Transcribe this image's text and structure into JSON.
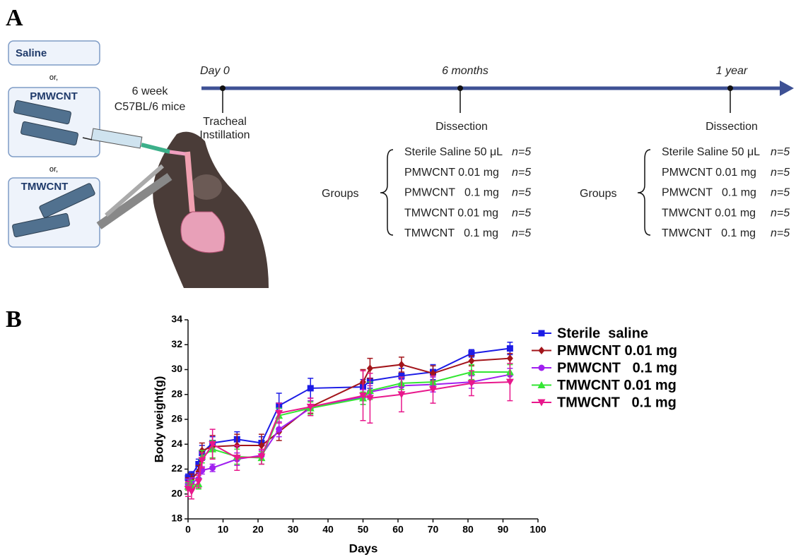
{
  "panel_a": {
    "label": "A",
    "materials": [
      "Saline",
      "PMWCNT",
      "TMWCNT"
    ],
    "separators": [
      "or,",
      "or,"
    ],
    "mice": [
      "6 week",
      "C57BL/6 mice"
    ],
    "timeline": [
      {
        "time": "Day 0",
        "event": [
          "Tracheal",
          "Instillation"
        ]
      },
      {
        "time": "6 months",
        "event": [
          "Dissection"
        ]
      },
      {
        "time": "1 year",
        "event": [
          "Dissection"
        ]
      }
    ],
    "groups": [
      {
        "label": "Groups",
        "items": [
          {
            "name": "Sterile Saline 50 μL",
            "n": "n=5"
          },
          {
            "name": "PMWCNT 0.01 mg",
            "n": "n=5"
          },
          {
            "name": "PMWCNT   0.1 mg",
            "n": "n=5"
          },
          {
            "name": "TMWCNT 0.01 mg",
            "n": "n=5"
          },
          {
            "name": "TMWCNT   0.1 mg",
            "n": "n=5"
          }
        ]
      },
      {
        "label": "Groups",
        "items": [
          {
            "name": "Sterile Saline 50 μL",
            "n": "n=5"
          },
          {
            "name": "PMWCNT 0.01 mg",
            "n": "n=5"
          },
          {
            "name": "PMWCNT   0.1 mg",
            "n": "n=5"
          },
          {
            "name": "TMWCNT 0.01 mg",
            "n": "n=5"
          },
          {
            "name": "TMWCNT   0.1 mg",
            "n": "n=5"
          }
        ]
      }
    ]
  },
  "chart_data": {
    "type": "line",
    "panel_label": "B",
    "x_label": "Days",
    "y_label": "Body weight(g)",
    "xlim": [
      0,
      100
    ],
    "xticks": [
      0,
      10,
      20,
      30,
      40,
      50,
      60,
      70,
      80,
      90,
      100
    ],
    "ylim": [
      18,
      34
    ],
    "yticks": [
      18,
      20,
      22,
      24,
      26,
      28,
      30,
      32,
      34
    ],
    "legend": "upper right",
    "x": [
      0,
      1,
      3,
      4,
      7,
      14,
      21,
      26,
      35,
      50,
      52,
      61,
      70,
      81,
      92
    ],
    "series": [
      {
        "name": "Sterile  saline",
        "color": "#1c1ce6",
        "marker": "square",
        "values": [
          21.3,
          21.5,
          22.4,
          23.3,
          24.1,
          24.4,
          24.1,
          27.1,
          28.5,
          28.6,
          29.1,
          29.5,
          29.8,
          31.3,
          31.7
        ],
        "errors": [
          0.3,
          0.3,
          0.4,
          0.6,
          0.5,
          0.6,
          0.5,
          1.0,
          0.8,
          0.6,
          0.6,
          0.6,
          0.6,
          0.3,
          0.5
        ]
      },
      {
        "name": "PMWCNT 0.01 mg",
        "color": "#a3151b",
        "marker": "diamond",
        "values": [
          20.9,
          21.2,
          21.8,
          23.5,
          23.8,
          23.9,
          23.9,
          25.0,
          27.0,
          29.0,
          30.1,
          30.4,
          29.7,
          30.7,
          30.9
        ],
        "errors": [
          0.4,
          0.4,
          0.5,
          0.6,
          0.9,
          0.9,
          0.9,
          0.7,
          0.5,
          1.0,
          0.8,
          0.6,
          0.6,
          0.4,
          0.4
        ]
      },
      {
        "name": "PMWCNT   0.1 mg",
        "color": "#a020f0",
        "marker": "circle",
        "values": [
          20.8,
          20.9,
          21.2,
          21.9,
          22.1,
          22.8,
          23.1,
          25.2,
          26.9,
          27.8,
          28.2,
          28.7,
          28.8,
          29.0,
          29.6
        ],
        "errors": [
          0.4,
          0.4,
          0.5,
          0.3,
          0.3,
          0.5,
          0.4,
          0.6,
          0.6,
          0.6,
          0.5,
          0.5,
          0.6,
          0.5,
          0.5
        ]
      },
      {
        "name": "TMWCNT 0.01 mg",
        "color": "#33e633",
        "marker": "triangle-up",
        "values": [
          20.6,
          20.7,
          20.8,
          23.0,
          23.6,
          23.0,
          22.9,
          26.3,
          26.9,
          27.7,
          28.3,
          28.9,
          29.0,
          29.8,
          29.8
        ],
        "errors": [
          0.3,
          0.4,
          0.4,
          0.5,
          0.7,
          0.6,
          0.5,
          0.6,
          0.5,
          0.5,
          0.7,
          0.5,
          0.5,
          0.6,
          0.6
        ]
      },
      {
        "name": "TMWCNT   0.1 mg",
        "color": "#e8188c",
        "marker": "triangle-down",
        "values": [
          20.4,
          20.2,
          21.0,
          22.7,
          24.0,
          22.9,
          23.0,
          26.5,
          27.0,
          27.9,
          27.7,
          28.0,
          28.4,
          28.9,
          29.0
        ],
        "errors": [
          0.6,
          0.6,
          0.5,
          0.6,
          1.2,
          1.0,
          0.6,
          0.8,
          0.7,
          2.0,
          2.0,
          1.4,
          1.1,
          1.0,
          1.5
        ]
      }
    ]
  }
}
